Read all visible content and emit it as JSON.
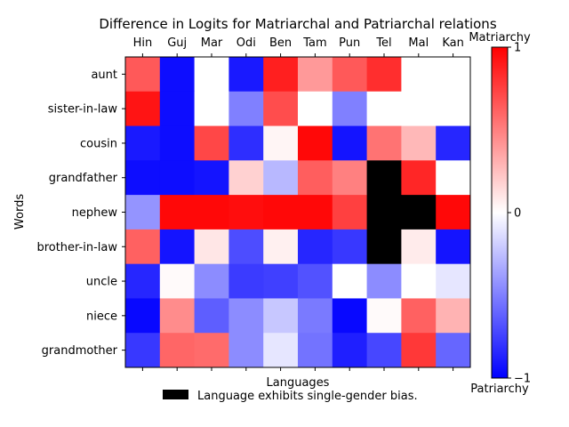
{
  "chart_data": {
    "type": "heatmap",
    "title": "Difference in Logits for Matriarchal and Patriarchal relations",
    "xlabel": "Languages",
    "ylabel": "Words",
    "columns": [
      "Hin",
      "Guj",
      "Mar",
      "Odi",
      "Ben",
      "Tam",
      "Pun",
      "Tel",
      "Mal",
      "Kan"
    ],
    "rows": [
      "aunt",
      "sister-in-law",
      "cousin",
      "grandfather",
      "nephew",
      "brother-in-law",
      "uncle",
      "niece",
      "grandmother"
    ],
    "values": [
      [
        0.65,
        -0.95,
        0.0,
        -0.9,
        0.88,
        0.4,
        0.65,
        0.82,
        0.0,
        0.0
      ],
      [
        0.92,
        -0.95,
        0.0,
        -0.5,
        0.7,
        0.0,
        -0.5,
        0.0,
        0.0,
        0.0
      ],
      [
        -0.9,
        -0.95,
        0.72,
        -0.82,
        0.04,
        0.97,
        -0.92,
        0.55,
        0.28,
        -0.85
      ],
      [
        -0.95,
        -0.95,
        -0.92,
        0.18,
        -0.28,
        0.63,
        0.5,
        null,
        0.85,
        0.0
      ],
      [
        -0.42,
        0.97,
        0.97,
        0.95,
        0.97,
        0.97,
        0.75,
        null,
        null,
        0.97
      ],
      [
        0.62,
        -0.92,
        0.1,
        -0.7,
        0.06,
        -0.85,
        -0.78,
        null,
        0.08,
        -0.92
      ],
      [
        -0.85,
        0.02,
        -0.45,
        -0.77,
        -0.75,
        -0.68,
        0.0,
        -0.45,
        0.0,
        -0.1
      ],
      [
        -0.97,
        0.45,
        -0.63,
        -0.45,
        -0.22,
        -0.52,
        -0.97,
        0.02,
        0.62,
        0.3
      ],
      [
        -0.78,
        0.6,
        0.58,
        -0.45,
        -0.1,
        -0.55,
        -0.88,
        -0.72,
        0.78,
        -0.6
      ]
    ],
    "null_meaning": "single-gender bias",
    "null_color": "#000000",
    "colormap": "bwr",
    "colormap_colors": {
      "low": "#0000ff",
      "mid": "#ffffff",
      "high": "#ff0000"
    },
    "vmin": -1,
    "vmax": 1,
    "colorbar": {
      "ticks": [
        "−1",
        "0",
        "1"
      ],
      "top_label": "Matriarchy",
      "bottom_label": "Patriarchy"
    },
    "legend": {
      "label": "Language exhibits single-gender bias.",
      "placement": "bottom-center"
    },
    "grid": false
  }
}
